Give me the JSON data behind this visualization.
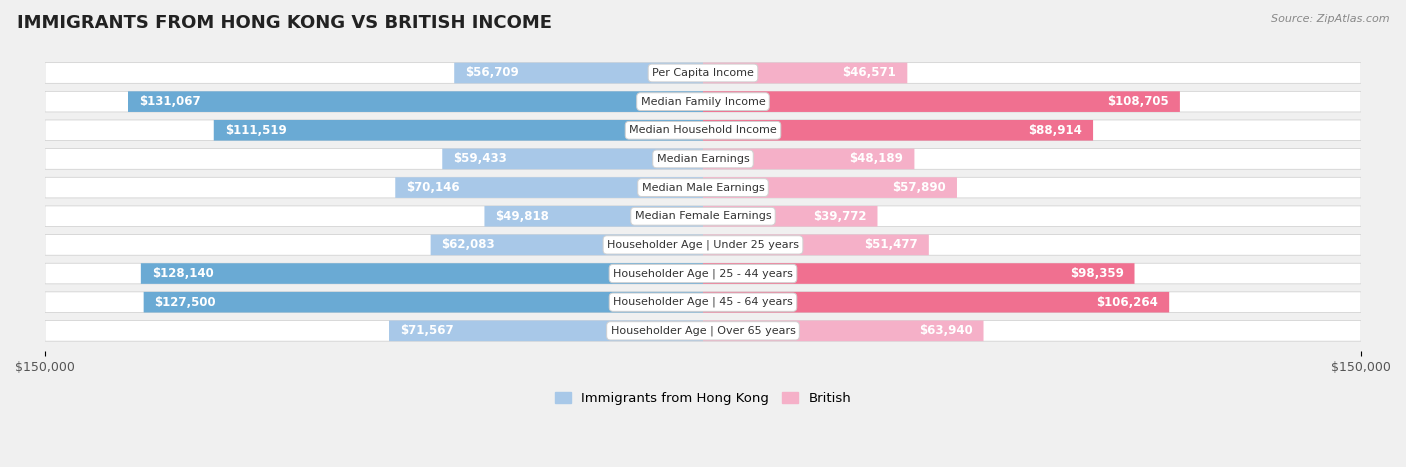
{
  "title": "IMMIGRANTS FROM HONG KONG VS BRITISH INCOME",
  "source": "Source: ZipAtlas.com",
  "categories": [
    "Per Capita Income",
    "Median Family Income",
    "Median Household Income",
    "Median Earnings",
    "Median Male Earnings",
    "Median Female Earnings",
    "Householder Age | Under 25 years",
    "Householder Age | 25 - 44 years",
    "Householder Age | 45 - 64 years",
    "Householder Age | Over 65 years"
  ],
  "hk_values": [
    56709,
    131067,
    111519,
    59433,
    70146,
    49818,
    62083,
    128140,
    127500,
    71567
  ],
  "british_values": [
    46571,
    108705,
    88914,
    48189,
    57890,
    39772,
    51477,
    98359,
    106264,
    63940
  ],
  "hk_color_light": "#a8c8e8",
  "hk_color_dark": "#6aaad4",
  "british_color_light": "#f5b0c8",
  "british_color_dark": "#f07090",
  "hk_dark_threshold": 100000,
  "british_dark_threshold": 80000,
  "max_value": 150000,
  "hk_label": "Immigrants from Hong Kong",
  "british_label": "British",
  "background_color": "#f0f0f0",
  "row_color": "#e8e8e8",
  "row_border_color": "#d0d0d0",
  "title_fontsize": 13,
  "value_fontsize": 8.5,
  "cat_fontsize": 8,
  "tick_fontsize": 9
}
